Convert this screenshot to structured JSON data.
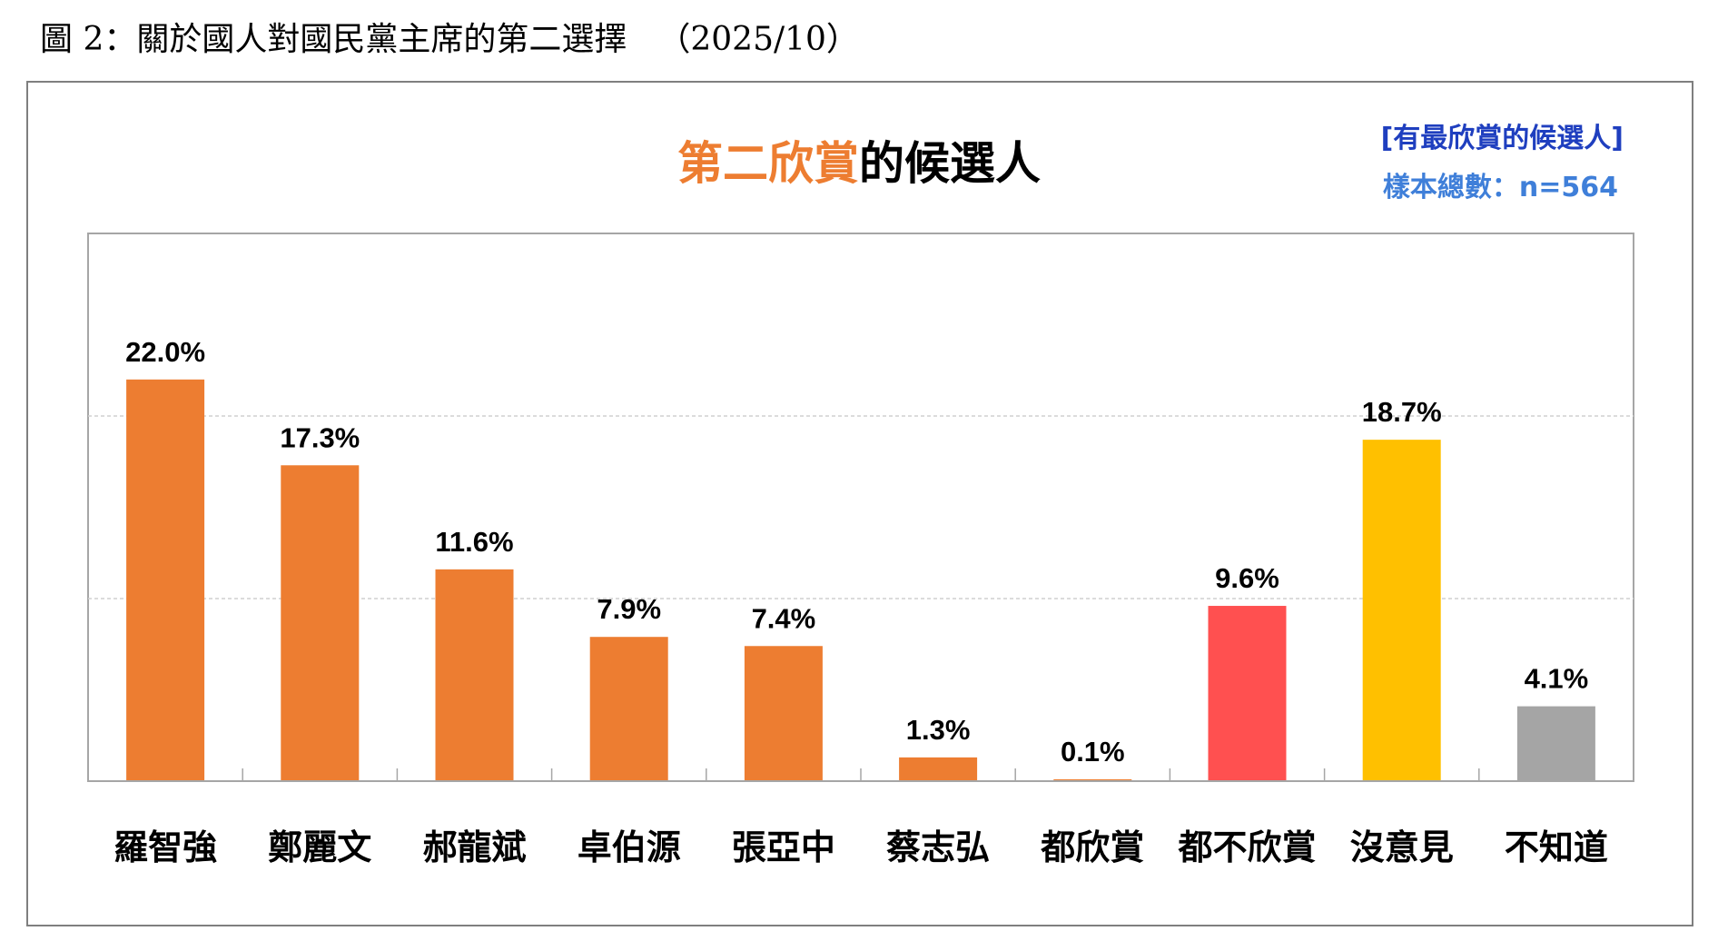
{
  "caption": {
    "text": "圖 2：關於國人對國民黨主席的第二選擇",
    "date": "（2025/10）"
  },
  "chart_data": {
    "type": "bar",
    "title_highlight": "第二欣賞",
    "title_rest": "的候選人",
    "note_subset": "[有最欣賞的候選人]",
    "note_sample": "樣本總數：n=564",
    "categories": [
      "羅智強",
      "鄭麗文",
      "郝龍斌",
      "卓伯源",
      "張亞中",
      "蔡志弘",
      "都欣賞",
      "都不欣賞",
      "沒意見",
      "不知道"
    ],
    "values": [
      22.0,
      17.3,
      11.6,
      7.9,
      7.4,
      1.3,
      0.1,
      9.6,
      18.7,
      4.1
    ],
    "value_labels": [
      "22.0%",
      "17.3%",
      "11.6%",
      "7.9%",
      "7.4%",
      "1.3%",
      "0.1%",
      "9.6%",
      "18.7%",
      "4.1%"
    ],
    "colors": [
      "#ed7d31",
      "#ed7d31",
      "#ed7d31",
      "#ed7d31",
      "#ed7d31",
      "#ed7d31",
      "#ed7d31",
      "#ff5050",
      "#ffc000",
      "#a5a5a5"
    ],
    "ylim": [
      0,
      30
    ],
    "gridlines": [
      10,
      20
    ],
    "grid": true
  }
}
